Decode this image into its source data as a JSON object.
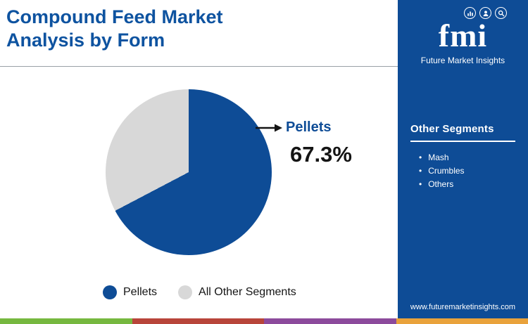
{
  "header": {
    "title_line1": "Compound Feed Market",
    "title_line2": "Analysis by Form"
  },
  "chart_data": {
    "type": "pie",
    "title": "Compound Feed Market Analysis by Form",
    "slices": [
      {
        "label": "Pellets",
        "value": 67.3,
        "color": "#0e4c96"
      },
      {
        "label": "All Other Segments",
        "value": 32.7,
        "color": "#d8d8d8"
      }
    ],
    "callout": {
      "label": "Pellets",
      "value": "67.3%"
    },
    "start_angle_deg": 0,
    "direction": "clockwise",
    "legend_position": "bottom"
  },
  "sidebar": {
    "logo_text": "fmi",
    "logo_subtitle": "Future Market Insights",
    "logo_icons": [
      "bar-chart",
      "person",
      "magnifier"
    ],
    "section_title": "Other Segments",
    "items": [
      "Mash",
      "Crumbles",
      "Others"
    ],
    "website": "www.futuremarketinsights.com",
    "background": "#0e4c96"
  },
  "footer": {
    "stripe_colors": [
      "#76b83f",
      "#b8453a",
      "#8c4a9c",
      "#e9a23b"
    ]
  }
}
